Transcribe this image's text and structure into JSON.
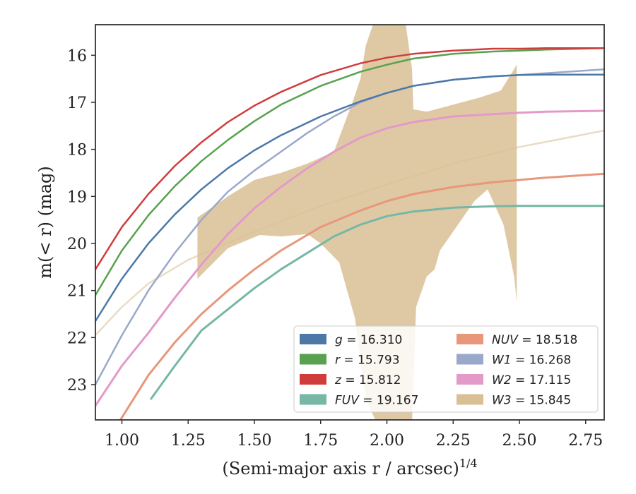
{
  "chart_data": {
    "type": "line",
    "xlabel": "(Semi-major axis r / arcsec)",
    "xlabel_sup": "1/4",
    "ylabel": "m(< r) (mag)",
    "xlim": [
      0.9,
      2.82
    ],
    "ylim": [
      23.75,
      15.35
    ],
    "y_inverted": true,
    "grid": false,
    "legend_position": "lower-right",
    "legend_columns": 2,
    "x_ticks": [
      "1.00",
      "1.25",
      "1.50",
      "1.75",
      "2.00",
      "2.25",
      "2.50",
      "2.75"
    ],
    "y_ticks": [
      "16",
      "17",
      "18",
      "19",
      "20",
      "21",
      "22",
      "23"
    ],
    "series": [
      {
        "name": "g = 16.310",
        "label_var": "g",
        "label_val": "16.310",
        "color": "#4C78A8",
        "kind": "line",
        "width": 2.5,
        "x": [
          0.9,
          1.0,
          1.1,
          1.2,
          1.3,
          1.4,
          1.5,
          1.6,
          1.75,
          1.9,
          2.0,
          2.1,
          2.25,
          2.4,
          2.5,
          2.6,
          2.82
        ],
        "y": [
          21.65,
          20.75,
          20.0,
          19.38,
          18.85,
          18.4,
          18.02,
          17.7,
          17.3,
          16.98,
          16.8,
          16.65,
          16.52,
          16.45,
          16.42,
          16.41,
          16.41
        ]
      },
      {
        "name": "r = 15.793",
        "label_var": "r",
        "label_val": "15.793",
        "color": "#59A14F",
        "kind": "line",
        "width": 2.5,
        "x": [
          0.9,
          1.0,
          1.1,
          1.2,
          1.3,
          1.4,
          1.5,
          1.6,
          1.75,
          1.9,
          2.0,
          2.1,
          2.25,
          2.4,
          2.5,
          2.6,
          2.82
        ],
        "y": [
          21.1,
          20.15,
          19.4,
          18.78,
          18.25,
          17.8,
          17.4,
          17.05,
          16.65,
          16.35,
          16.2,
          16.07,
          15.97,
          15.92,
          15.9,
          15.88,
          15.85
        ]
      },
      {
        "name": "z = 15.812",
        "label_var": "z",
        "label_val": "15.812",
        "color": "#D03C3C",
        "kind": "line",
        "width": 2.5,
        "x": [
          0.9,
          1.0,
          1.1,
          1.2,
          1.3,
          1.4,
          1.5,
          1.6,
          1.75,
          1.9,
          2.0,
          2.1,
          2.25,
          2.4,
          2.5,
          2.6,
          2.82
        ],
        "y": [
          20.55,
          19.65,
          18.95,
          18.35,
          17.85,
          17.42,
          17.07,
          16.78,
          16.42,
          16.17,
          16.05,
          15.97,
          15.9,
          15.86,
          15.86,
          15.85,
          15.85
        ]
      },
      {
        "name": "FUV = 19.167",
        "label_var": "FUV",
        "label_val": "19.167",
        "color": "#76B7A6",
        "kind": "line",
        "width": 3,
        "x": [
          1.11,
          1.2,
          1.3,
          1.4,
          1.5,
          1.6,
          1.7,
          1.8,
          1.9,
          2.0,
          2.1,
          2.25,
          2.4,
          2.5,
          2.6,
          2.82
        ],
        "y": [
          23.3,
          22.6,
          21.85,
          21.4,
          20.95,
          20.55,
          20.2,
          19.85,
          19.6,
          19.42,
          19.32,
          19.24,
          19.21,
          19.2,
          19.2,
          19.2
        ]
      },
      {
        "name": "NUV = 18.518",
        "label_var": "NUV",
        "label_val": "18.518",
        "color": "#E8977A",
        "kind": "line",
        "width": 3,
        "x": [
          0.95,
          1.0,
          1.1,
          1.2,
          1.3,
          1.4,
          1.5,
          1.6,
          1.75,
          1.9,
          2.0,
          2.1,
          2.25,
          2.4,
          2.5,
          2.6,
          2.82
        ],
        "y": [
          24.1,
          23.7,
          22.8,
          22.1,
          21.5,
          21.0,
          20.55,
          20.15,
          19.65,
          19.3,
          19.1,
          18.95,
          18.8,
          18.7,
          18.65,
          18.6,
          18.52
        ]
      },
      {
        "name": "W1 = 16.268",
        "label_var": "W1",
        "label_val": "16.268",
        "color": "#9AA8C9",
        "kind": "line",
        "width": 2.5,
        "x": [
          0.9,
          1.0,
          1.1,
          1.2,
          1.3,
          1.4,
          1.5,
          1.6,
          1.7,
          1.8,
          1.9,
          2.0,
          2.1,
          2.25,
          2.4,
          2.5,
          2.6,
          2.82
        ],
        "y": [
          23.0,
          21.95,
          21.0,
          20.2,
          19.5,
          18.9,
          18.45,
          18.05,
          17.65,
          17.3,
          17.0,
          16.8,
          16.65,
          16.52,
          16.45,
          16.42,
          16.38,
          16.3
        ]
      },
      {
        "name": "W2 = 17.115",
        "label_var": "W2",
        "label_val": "17.115",
        "color": "#E39AC9",
        "kind": "line",
        "width": 3,
        "x": [
          0.9,
          1.0,
          1.1,
          1.2,
          1.3,
          1.4,
          1.5,
          1.6,
          1.7,
          1.8,
          1.9,
          2.0,
          2.1,
          2.25,
          2.4,
          2.5,
          2.6,
          2.82
        ],
        "y": [
          23.45,
          22.6,
          21.9,
          21.15,
          20.45,
          19.8,
          19.25,
          18.8,
          18.4,
          18.05,
          17.75,
          17.55,
          17.42,
          17.3,
          17.25,
          17.22,
          17.2,
          17.18
        ]
      },
      {
        "name": "W3 = 15.845",
        "label_var": "W3",
        "label_val": "15.845",
        "color": "#D9BF94",
        "kind": "line",
        "width": 2.5,
        "opacity": 0.55,
        "x": [
          0.9,
          1.0,
          1.1,
          1.25,
          1.5,
          1.75,
          2.0,
          2.25,
          2.5,
          2.82
        ],
        "y": [
          21.95,
          21.35,
          20.85,
          20.35,
          19.75,
          19.2,
          18.75,
          18.3,
          17.95,
          17.6
        ]
      }
    ],
    "w3_band": {
      "color": "#D9BF94",
      "x_upper": [
        1.285,
        1.4,
        1.5,
        1.6,
        1.7,
        1.8,
        1.87,
        1.9,
        1.92,
        1.95,
        2.07,
        2.095,
        2.1,
        2.15,
        2.25,
        2.35,
        2.43,
        2.49
      ],
      "y_upper": [
        19.45,
        19.0,
        18.65,
        18.5,
        18.3,
        18.05,
        17.0,
        16.5,
        15.8,
        15.3,
        15.3,
        16.3,
        17.15,
        17.2,
        17.05,
        16.9,
        16.75,
        16.2
      ],
      "x_lower": [
        2.49,
        2.48,
        2.44,
        2.38,
        2.33,
        2.2,
        2.18,
        2.15,
        2.11,
        2.095,
        2.06,
        2.0,
        1.96,
        1.92,
        1.9,
        1.88,
        1.82,
        1.75,
        1.7,
        1.6,
        1.52,
        1.4,
        1.285
      ],
      "y_lower": [
        21.25,
        20.7,
        19.6,
        18.85,
        19.1,
        20.15,
        20.55,
        20.7,
        21.35,
        23.8,
        23.8,
        23.8,
        23.8,
        23.3,
        22.5,
        21.6,
        20.4,
        20.0,
        19.8,
        19.85,
        19.82,
        20.1,
        20.75
      ]
    }
  }
}
